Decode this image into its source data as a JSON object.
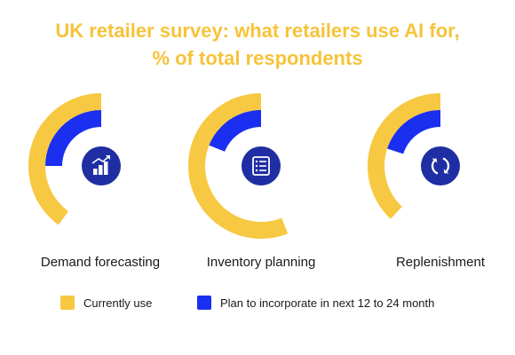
{
  "title_line1": "UK retailer survey:  what retailers use AI for,",
  "title_line2": "% of total respondents",
  "colors": {
    "title": "#f6c33a",
    "currently": "#f7c841",
    "plan": "#1a2ff0",
    "icon_bg": "#1f2ea3"
  },
  "chart_data": {
    "type": "radial-bar",
    "title": "UK retailer survey:  what retailers use AI for, % of total respondents",
    "categories": [
      "Demand forecasting",
      "Inventory planning",
      "Replenishment"
    ],
    "legend": [
      "Currently use",
      "Plan to incorporate in next 12 to 24 month"
    ],
    "legend_placement": "bottom",
    "scale_max": 100,
    "series": [
      {
        "name": "Currently use",
        "values": [
          40,
          56,
          38
        ]
      },
      {
        "name": "Plan to incorporate in next 12 to 24 month",
        "values": [
          25,
          19,
          20
        ]
      }
    ],
    "icons": [
      "bar-chart-icon",
      "list-icon",
      "cycle-icon"
    ]
  }
}
